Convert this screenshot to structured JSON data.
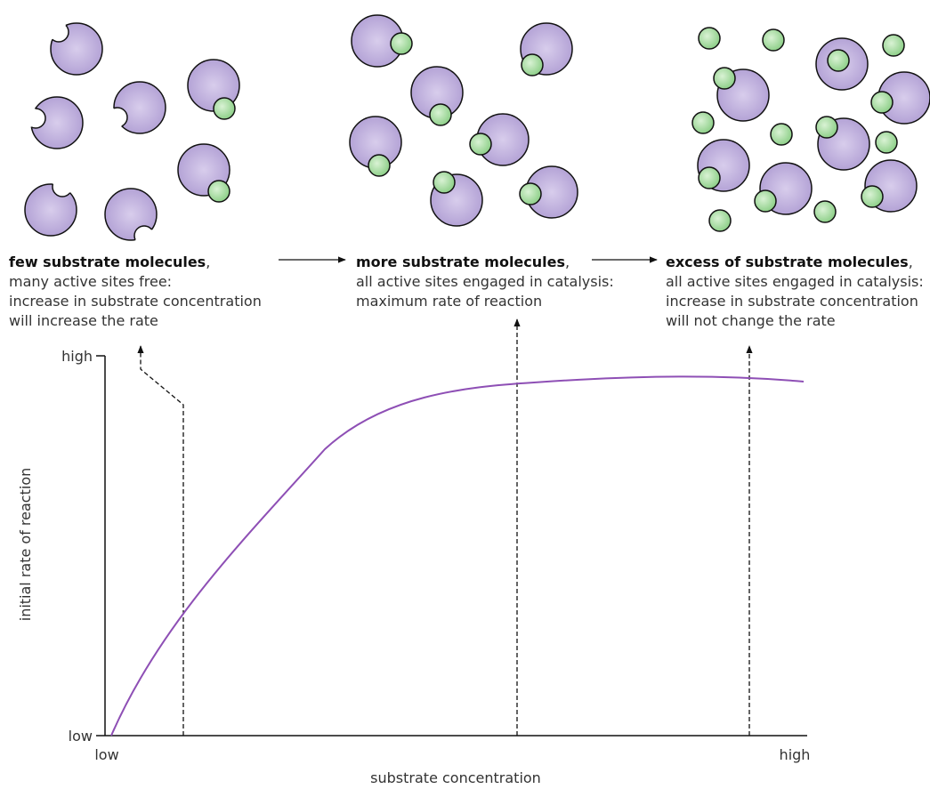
{
  "panels": [
    {
      "title": "few substrate molecules",
      "title_suffix": ",",
      "lines": [
        "many active sites free:",
        "increase in substrate concentration",
        "will increase the rate"
      ]
    },
    {
      "title": "more substrate molecules",
      "title_suffix": ",",
      "lines": [
        "all active sites engaged in catalysis:",
        "maximum rate of reaction"
      ]
    },
    {
      "title": "excess of substrate molecules",
      "title_suffix": ",",
      "lines": [
        "all active sites engaged in catalysis:",
        "increase in substrate concentration",
        "will not change the rate"
      ]
    }
  ],
  "graph": {
    "y_label": "initial rate of reaction",
    "x_label": "substrate concentration",
    "y_high": "high",
    "y_low": "low",
    "x_low": "low",
    "x_high": "high"
  }
}
